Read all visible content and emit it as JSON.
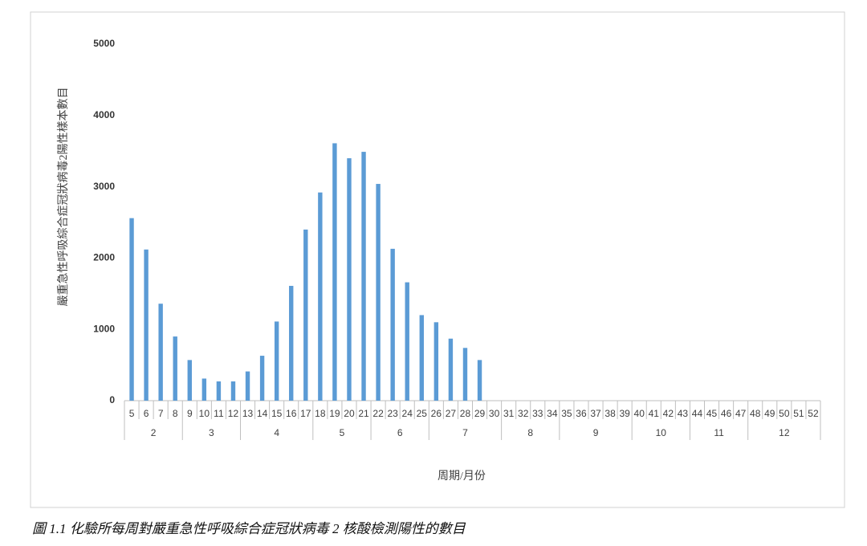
{
  "chart_data": {
    "type": "bar",
    "y_label": "嚴重急性呼吸綜合症冠狀病毒2陽性樣本數目",
    "x_label": "周期/月份",
    "caption": "圖 1.1 化驗所每周對嚴重急性呼吸綜合症冠狀病毒 2 核酸檢測陽性的數目",
    "categories": [
      "5",
      "6",
      "7",
      "8",
      "9",
      "10",
      "11",
      "12",
      "13",
      "14",
      "15",
      "16",
      "17",
      "18",
      "19",
      "20",
      "21",
      "22",
      "23",
      "24",
      "25",
      "26",
      "27",
      "28",
      "29",
      "30",
      "31",
      "32",
      "33",
      "34",
      "35",
      "36",
      "37",
      "38",
      "39",
      "40",
      "41",
      "42",
      "43",
      "44",
      "45",
      "46",
      "47",
      "48",
      "49",
      "50",
      "51",
      "52"
    ],
    "months": [
      "2",
      "2",
      "2",
      "2",
      "3",
      "3",
      "3",
      "3",
      "4",
      "4",
      "4",
      "4",
      "4",
      "5",
      "5",
      "5",
      "5",
      "6",
      "6",
      "6",
      "6",
      "7",
      "7",
      "7",
      "7",
      "7",
      "8",
      "8",
      "8",
      "8",
      "9",
      "9",
      "9",
      "9",
      "9",
      "10",
      "10",
      "10",
      "10",
      "11",
      "11",
      "11",
      "11",
      "12",
      "12",
      "12",
      "12",
      "12"
    ],
    "values": [
      2560,
      2120,
      1360,
      900,
      570,
      310,
      270,
      270,
      410,
      630,
      1110,
      1610,
      2400,
      2920,
      3610,
      3400,
      3490,
      3040,
      2130,
      1660,
      1200,
      1100,
      870,
      740,
      570,
      null,
      null,
      null,
      null,
      null,
      null,
      null,
      null,
      null,
      null,
      null,
      null,
      null,
      null,
      null,
      null,
      null,
      null,
      null,
      null,
      null,
      null,
      null
    ],
    "color": "#5b9bd5",
    "ylim": [
      0,
      5000
    ],
    "yticks": [
      0,
      1000,
      2000,
      3000,
      4000,
      5000
    ]
  }
}
